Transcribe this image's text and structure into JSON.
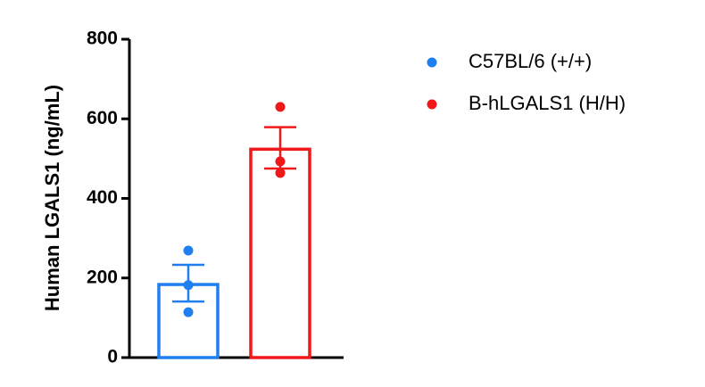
{
  "chart_data": {
    "type": "bar",
    "ylabel": "Human LGALS1 (ng/mL)",
    "ylim": [
      0,
      800
    ],
    "yticks": [
      0,
      200,
      400,
      600,
      800
    ],
    "legend": "right",
    "series": [
      {
        "name": "C57BL/6 (+/+)",
        "color": "#1f7ff0",
        "values": [
          187
        ],
        "errors": [
          46
        ],
        "points": [
          269,
          182,
          114
        ]
      },
      {
        "name": "B-hLGALS1 (H/H)",
        "color": "#f01818",
        "values": [
          527
        ],
        "errors": [
          52
        ],
        "points": [
          630,
          493,
          464
        ]
      }
    ]
  }
}
